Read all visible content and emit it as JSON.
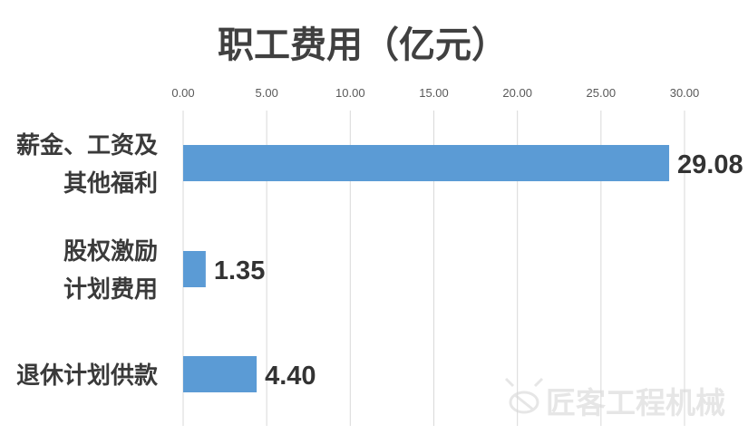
{
  "chart_data": {
    "type": "bar",
    "orientation": "horizontal",
    "title": "职工费用（亿元）",
    "categories": [
      [
        "薪金、工资及",
        "其他福利"
      ],
      [
        "股权激励",
        "计划费用"
      ],
      [
        "退休计划供款"
      ]
    ],
    "values": [
      29.08,
      1.35,
      4.4
    ],
    "value_labels": [
      "29.08",
      "1.35",
      "4.40"
    ],
    "xlim": [
      0,
      30
    ],
    "x_ticks": [
      "0.00",
      "5.00",
      "10.00",
      "15.00",
      "20.00",
      "25.00",
      "30.00"
    ],
    "x_axis_position": "top",
    "grid": true,
    "legend": "none",
    "xlabel": "",
    "ylabel": ""
  },
  "colors": {
    "bar": "#5b9bd5",
    "grid": "#d9d9d9",
    "title": "#404040",
    "category_text": "#3a3a3a",
    "tick_text": "#595959",
    "value_text": "#333333",
    "watermark": "#e6e6e6"
  },
  "watermark": {
    "text": "匠客工程机械",
    "icon": "bee-logo-icon"
  }
}
